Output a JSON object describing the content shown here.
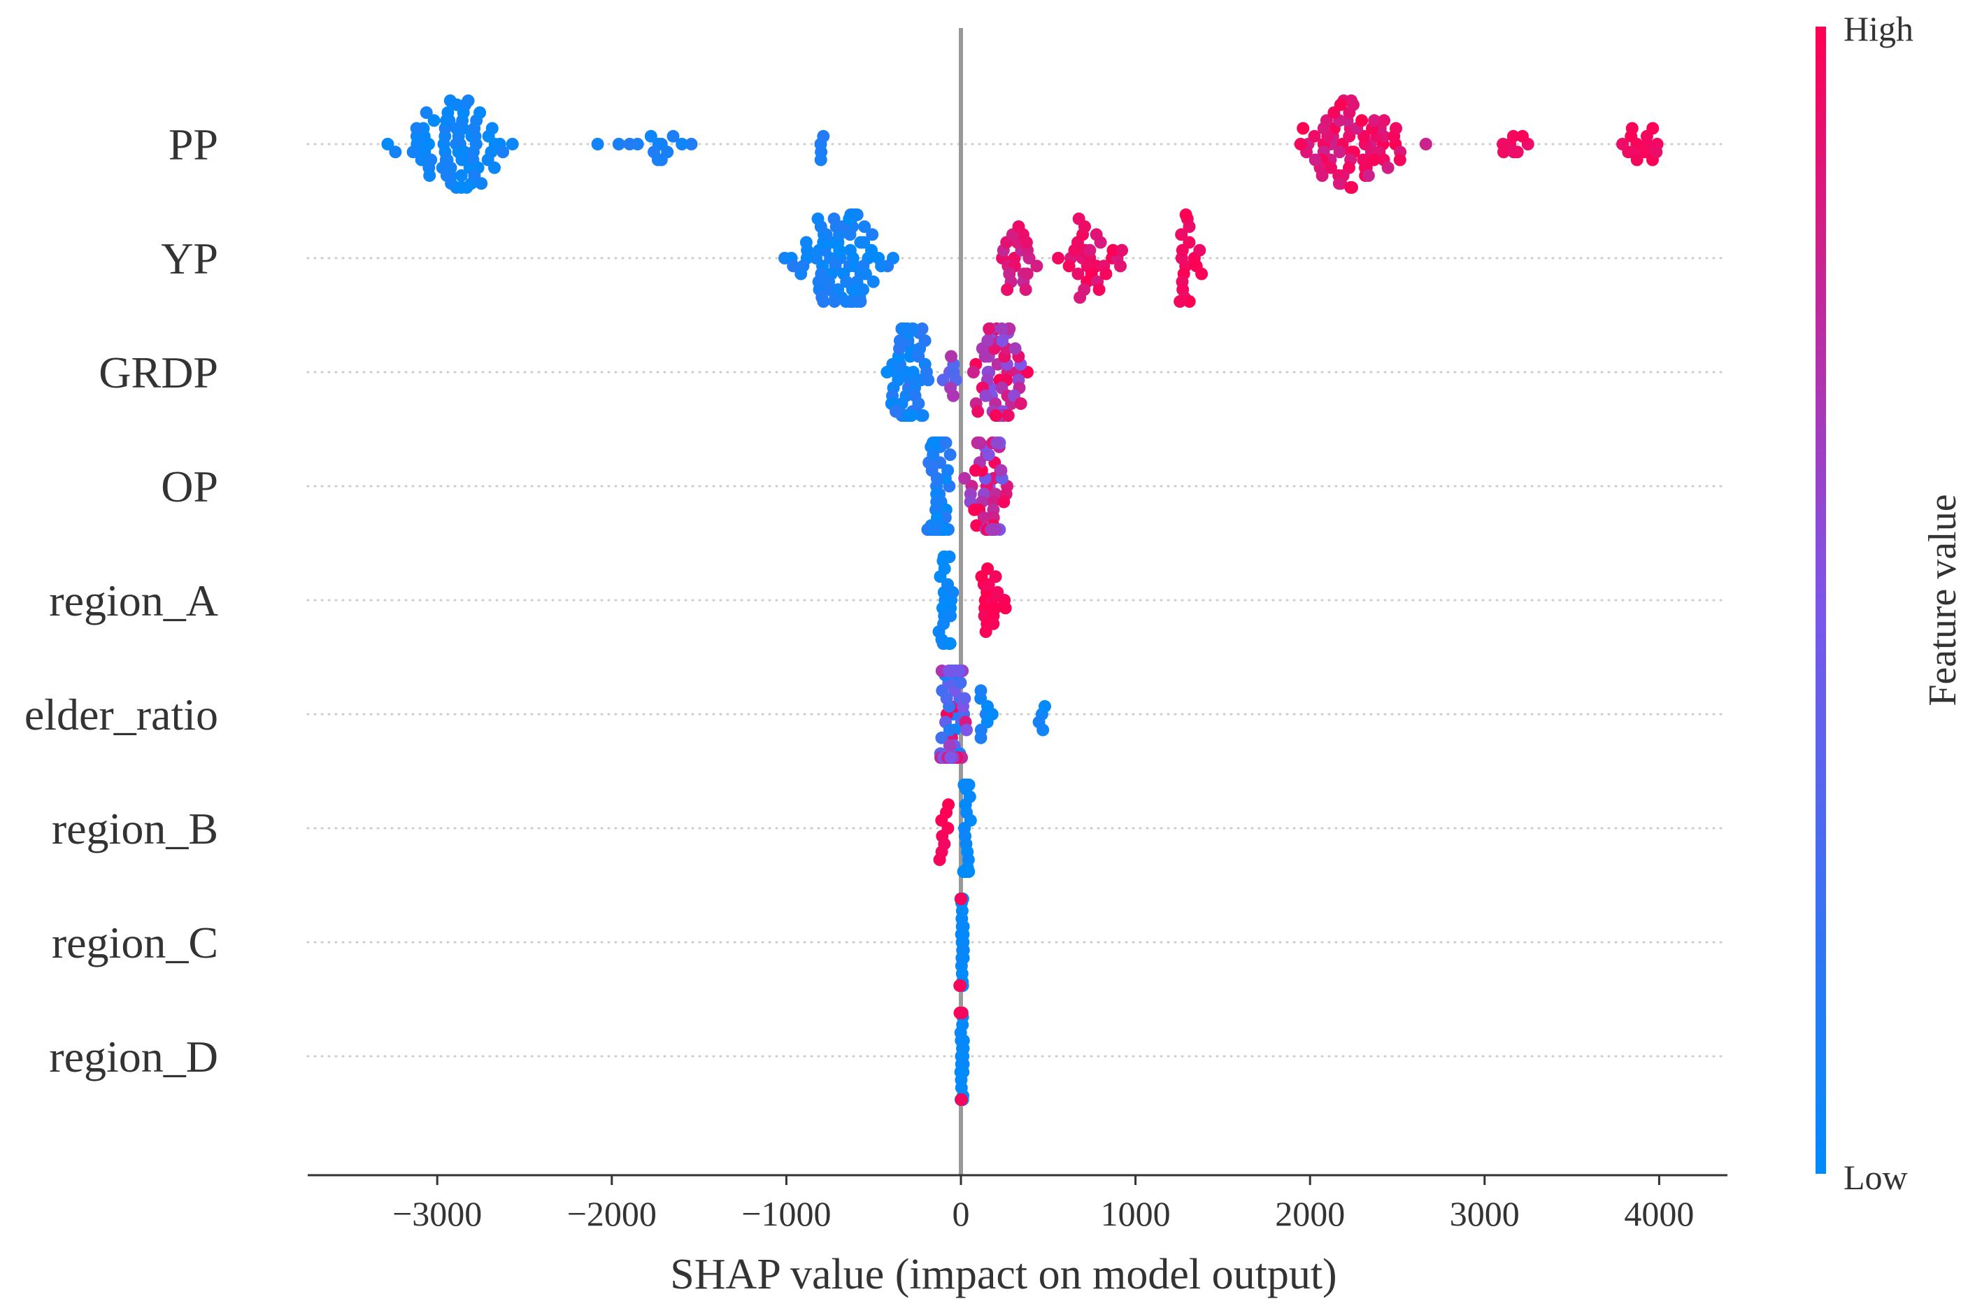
{
  "chart_data": {
    "type": "scatter",
    "subtype": "shap-beeswarm",
    "title": "",
    "xlabel": "SHAP value (impact on model output)",
    "ylabel": "",
    "xlim": [
      -3750,
      4400
    ],
    "xticks": [
      -3000,
      -2000,
      -1000,
      0,
      1000,
      2000,
      3000,
      4000
    ],
    "xtick_labels": [
      "−3000",
      "−2000",
      "−1000",
      "0",
      "1000",
      "2000",
      "3000",
      "4000"
    ],
    "features": [
      "PP",
      "YP",
      "GRDP",
      "OP",
      "region_A",
      "elder_ratio",
      "region_B",
      "region_C",
      "region_D"
    ],
    "colorbar": {
      "label": "Feature value",
      "high_label": "High",
      "low_label": "Low",
      "low_color": "#008bfb",
      "mid_color": "#7d55e9",
      "high_color": "#ff0052"
    },
    "series": [
      {
        "name": "PP",
        "clusters": [
          {
            "min": -3400,
            "max": -2400,
            "n": 70,
            "fmin": 0.0,
            "fmax": 0.1
          },
          {
            "min": -2250,
            "max": -1400,
            "n": 14,
            "fmin": 0.05,
            "fmax": 0.15
          },
          {
            "min": -820,
            "max": -780,
            "n": 4,
            "fmin": 0.1,
            "fmax": 0.15
          },
          {
            "min": 1800,
            "max": 2700,
            "n": 70,
            "fmin": 0.8,
            "fmax": 1.0
          },
          {
            "min": 3000,
            "max": 3300,
            "n": 8,
            "fmin": 0.9,
            "fmax": 1.0
          },
          {
            "min": 3750,
            "max": 4050,
            "n": 14,
            "fmin": 0.92,
            "fmax": 1.0
          }
        ]
      },
      {
        "name": "YP",
        "clusters": [
          {
            "min": -1050,
            "max": -300,
            "n": 80,
            "fmin": 0.0,
            "fmax": 0.15
          },
          {
            "min": 200,
            "max": 450,
            "n": 22,
            "fmin": 0.75,
            "fmax": 0.95
          },
          {
            "min": 520,
            "max": 1000,
            "n": 30,
            "fmin": 0.85,
            "fmax": 1.0
          },
          {
            "min": 1200,
            "max": 1400,
            "n": 18,
            "fmin": 0.92,
            "fmax": 1.0
          }
        ]
      },
      {
        "name": "GRDP",
        "clusters": [
          {
            "min": -480,
            "max": -130,
            "n": 60,
            "fmin": 0.0,
            "fmax": 0.2
          },
          {
            "min": -120,
            "max": 0,
            "n": 8,
            "fmin": 0.3,
            "fmax": 0.7
          },
          {
            "min": 0,
            "max": 450,
            "n": 55,
            "fmin": 0.5,
            "fmax": 1.0
          }
        ]
      },
      {
        "name": "OP",
        "clusters": [
          {
            "min": -220,
            "max": -30,
            "n": 55,
            "fmin": 0.0,
            "fmax": 0.2
          },
          {
            "min": -10,
            "max": 320,
            "n": 50,
            "fmin": 0.4,
            "fmax": 1.0
          }
        ]
      },
      {
        "name": "region_A",
        "clusters": [
          {
            "min": -150,
            "max": -30,
            "n": 25,
            "fmin": 0.0,
            "fmax": 0.08
          },
          {
            "min": 10,
            "max": 330,
            "n": 18,
            "fmin": 0.95,
            "fmax": 1.0
          }
        ]
      },
      {
        "name": "elder_ratio",
        "clusters": [
          {
            "min": -180,
            "max": 60,
            "n": 60,
            "fmin": 0.0,
            "fmax": 1.0
          },
          {
            "min": 60,
            "max": 200,
            "n": 8,
            "fmin": 0.0,
            "fmax": 0.15
          },
          {
            "min": 430,
            "max": 520,
            "n": 4,
            "fmin": 0.0,
            "fmax": 0.1
          }
        ]
      },
      {
        "name": "region_B",
        "clusters": [
          {
            "min": 0,
            "max": 60,
            "n": 40,
            "fmin": 0.0,
            "fmax": 0.05
          },
          {
            "min": -150,
            "max": -20,
            "n": 8,
            "fmin": 0.95,
            "fmax": 1.0
          }
        ]
      },
      {
        "name": "region_C",
        "clusters": [
          {
            "min": -10,
            "max": 20,
            "n": 40,
            "fmin": 0.0,
            "fmax": 0.05
          },
          {
            "min": -15,
            "max": 10,
            "n": 3,
            "fmin": 0.95,
            "fmax": 1.0
          }
        ]
      },
      {
        "name": "region_D",
        "clusters": [
          {
            "min": -10,
            "max": 20,
            "n": 45,
            "fmin": 0.0,
            "fmax": 0.05
          },
          {
            "min": -10,
            "max": 10,
            "n": 4,
            "fmin": 0.95,
            "fmax": 1.0
          }
        ]
      }
    ]
  }
}
